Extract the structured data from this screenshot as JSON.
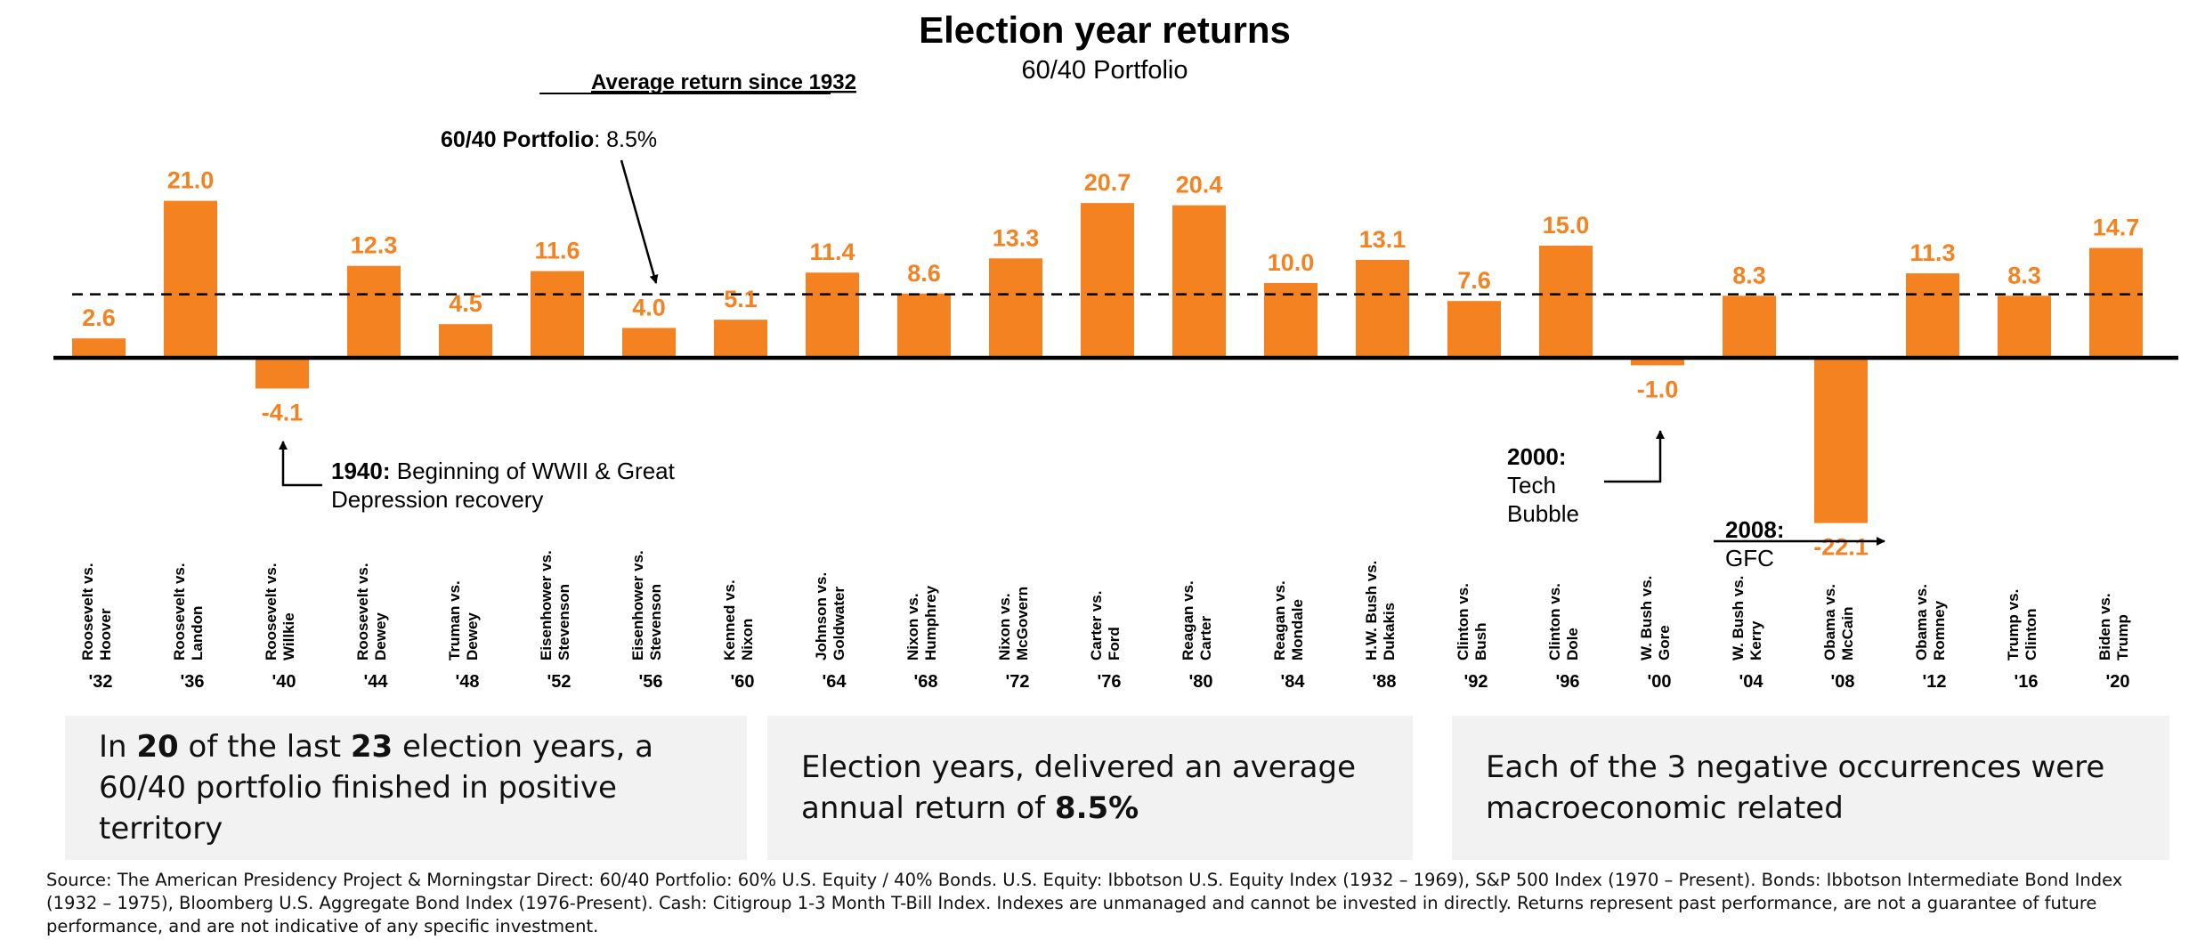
{
  "chart_data": {
    "type": "bar",
    "title": "Election year returns",
    "subtitle": "60/40 Portfolio",
    "years": [
      "'32",
      "'36",
      "'40",
      "'44",
      "'48",
      "'52",
      "'56",
      "'60",
      "'64",
      "'68",
      "'72",
      "'76",
      "'80",
      "'84",
      "'88",
      "'92",
      "'96",
      "'00",
      "'04",
      "'08",
      "'12",
      "'16",
      "'20"
    ],
    "matchups": [
      [
        "Roosevelt vs.",
        "Hoover"
      ],
      [
        "Roosevelt vs.",
        "Landon"
      ],
      [
        "Roosevelt vs.",
        "Willkie"
      ],
      [
        "Roosevelt vs.",
        "Dewey"
      ],
      [
        "Truman vs.",
        "Dewey"
      ],
      [
        "Eisenhower vs.",
        "Stevenson"
      ],
      [
        "Eisenhower vs.",
        "Stevenson"
      ],
      [
        "Kenned vs.",
        "Nixon"
      ],
      [
        "Johnson vs.",
        "Goldwater"
      ],
      [
        "Nixon vs.",
        "Humphrey"
      ],
      [
        "Nixon vs.",
        "McGovern"
      ],
      [
        "Carter vs.",
        "Ford"
      ],
      [
        "Reagan vs.",
        "Carter"
      ],
      [
        "Reagan vs.",
        "Mondale"
      ],
      [
        "H.W. Bush vs.",
        "Dukakis"
      ],
      [
        "Clinton vs.",
        "Bush"
      ],
      [
        "Clinton vs.",
        "Dole"
      ],
      [
        "W. Bush vs.",
        "Gore"
      ],
      [
        "W. Bush vs.",
        "Kerry"
      ],
      [
        "Obama vs.",
        "McCain"
      ],
      [
        "Obama vs.",
        "Romney"
      ],
      [
        "Trump vs.",
        "Clinton"
      ],
      [
        "Biden vs.",
        "Trump"
      ]
    ],
    "values": [
      2.6,
      21.0,
      -4.1,
      12.3,
      4.5,
      11.6,
      4.0,
      5.1,
      11.4,
      8.6,
      13.3,
      20.7,
      20.4,
      10.0,
      13.1,
      7.6,
      15.0,
      -1.0,
      8.3,
      -22.1,
      11.3,
      8.3,
      14.7
    ],
    "average": 8.5,
    "bar_color": "#f58220",
    "label_color": "#f58220"
  },
  "average_box": {
    "heading": "Average return since 1932",
    "label_bold": "60/40 Portfolio",
    "label_value": ": 8.5%"
  },
  "annotations": {
    "a1940": {
      "bold": "1940:",
      "line1": " Beginning of WWII & Great",
      "line2": "Depression recovery"
    },
    "a2000": {
      "line1": "2000:",
      "line2": "Tech",
      "line3": "Bubble"
    },
    "a2008": {
      "line1": "2008:",
      "line2": "GFC"
    }
  },
  "boxes": [
    {
      "parts": [
        [
          "In ",
          false
        ],
        [
          "20",
          true
        ],
        [
          " of the last ",
          false
        ],
        [
          "23",
          true
        ],
        [
          " election years, a 60/40 portfolio finished in positive territory",
          false
        ]
      ]
    },
    {
      "parts": [
        [
          "Election years, delivered an average annual return of ",
          false
        ],
        [
          "8.5%",
          true
        ]
      ]
    },
    {
      "parts": [
        [
          "Each of the 3 negative occurrences were macroeconomic related",
          false
        ]
      ]
    }
  ],
  "source": "Source: The American Presidency Project & Morningstar Direct: 60/40 Portfolio: 60% U.S. Equity / 40% Bonds. U.S. Equity: Ibbotson U.S. Equity Index (1932 – 1969), S&P 500 Index (1970 – Present). Bonds: Ibbotson Intermediate Bond Index (1932 – 1975), Bloomberg U.S. Aggregate Bond Index (1976-Present). Cash: Citigroup 1-3 Month T-Bill Index. Indexes are unmanaged and cannot be invested in directly. Returns represent past performance, are not a guarantee of future performance, and are not indicative of any specific investment."
}
